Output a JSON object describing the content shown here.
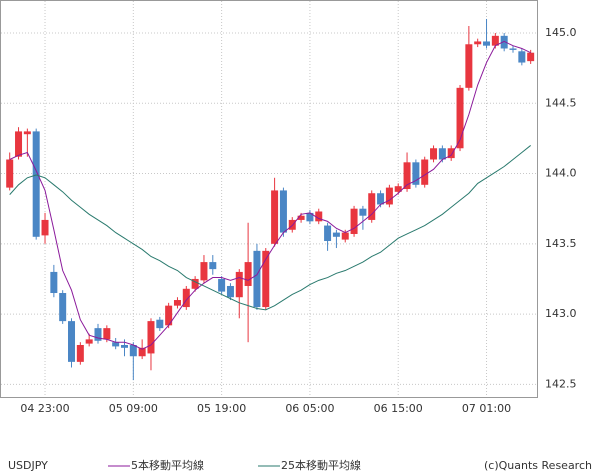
{
  "chart_data": {
    "type": "candlestick",
    "categories": [
      null,
      null,
      null,
      null,
      "04 23:00",
      null,
      null,
      null,
      null,
      null,
      null,
      null,
      null,
      null,
      "05 09:00",
      null,
      null,
      null,
      null,
      null,
      null,
      null,
      null,
      null,
      "05 19:00",
      null,
      null,
      null,
      null,
      null,
      null,
      null,
      null,
      null,
      "06 05:00",
      null,
      null,
      null,
      null,
      null,
      null,
      null,
      null,
      null,
      "06 15:00",
      null,
      null,
      null,
      null,
      null,
      null,
      null,
      null,
      null,
      "07 01:00",
      null,
      null,
      null,
      null,
      null
    ],
    "open": [
      143.9,
      144.12,
      144.28,
      144.3,
      143.56,
      143.3,
      143.15,
      142.95,
      142.66,
      142.79,
      142.9,
      142.82,
      142.8,
      142.78,
      142.78,
      142.7,
      142.72,
      142.96,
      142.92,
      143.06,
      143.05,
      143.18,
      143.24,
      143.37,
      143.25,
      143.2,
      143.12,
      143.2,
      143.45,
      143.05,
      143.5,
      143.88,
      143.6,
      143.67,
      143.72,
      143.66,
      143.63,
      143.58,
      143.53,
      143.57,
      143.75,
      143.67,
      143.86,
      143.78,
      143.87,
      143.89,
      144.08,
      143.92,
      144.1,
      144.18,
      144.11,
      144.18,
      144.61,
      144.92,
      144.94,
      144.91,
      144.98,
      144.89,
      144.87,
      144.8
    ],
    "high": [
      144.15,
      144.33,
      144.32,
      144.32,
      143.72,
      143.35,
      143.17,
      142.97,
      142.8,
      142.86,
      142.93,
      142.92,
      142.83,
      142.82,
      142.8,
      142.82,
      142.97,
      142.98,
      143.08,
      143.12,
      143.2,
      143.27,
      143.42,
      143.42,
      143.27,
      143.22,
      143.32,
      143.65,
      143.5,
      143.47,
      143.97,
      143.9,
      143.69,
      143.72,
      143.74,
      143.75,
      143.65,
      143.6,
      143.6,
      143.77,
      143.77,
      143.88,
      143.88,
      143.92,
      143.93,
      144.15,
      144.1,
      144.12,
      144.2,
      144.2,
      144.2,
      144.63,
      145.05,
      144.96,
      145.1,
      145.0,
      145.0,
      144.91,
      144.89,
      144.88
    ],
    "low": [
      143.88,
      144.1,
      144.12,
      143.53,
      143.5,
      143.12,
      142.93,
      142.62,
      142.64,
      142.77,
      142.79,
      142.8,
      142.75,
      142.7,
      142.53,
      142.68,
      142.6,
      142.88,
      142.9,
      143.04,
      143.03,
      143.16,
      143.22,
      143.28,
      143.14,
      143.1,
      142.97,
      142.8,
      143.03,
      143.03,
      143.48,
      143.55,
      143.58,
      143.65,
      143.64,
      143.64,
      143.45,
      143.47,
      143.51,
      143.55,
      143.6,
      143.65,
      143.76,
      143.76,
      143.85,
      143.87,
      143.9,
      143.9,
      144.08,
      144.08,
      144.09,
      144.16,
      144.59,
      144.9,
      144.89,
      144.89,
      144.87,
      144.86,
      144.77,
      144.78
    ],
    "close": [
      144.1,
      144.3,
      144.3,
      143.55,
      143.67,
      143.15,
      142.95,
      142.66,
      142.78,
      142.82,
      142.81,
      142.9,
      142.77,
      142.76,
      142.7,
      142.76,
      142.95,
      142.9,
      143.06,
      143.1,
      143.18,
      143.25,
      143.37,
      143.32,
      143.16,
      143.12,
      143.3,
      143.37,
      143.05,
      143.45,
      143.88,
      143.58,
      143.67,
      143.7,
      143.66,
      143.73,
      143.52,
      143.55,
      143.58,
      143.75,
      143.7,
      143.86,
      143.78,
      143.9,
      143.91,
      144.08,
      143.92,
      144.1,
      144.18,
      144.1,
      144.18,
      144.61,
      144.92,
      144.94,
      144.91,
      144.98,
      144.89,
      144.88,
      144.79,
      144.86
    ],
    "up_color": "#e8363f",
    "down_color": "#4a86c5",
    "series": [
      {
        "name": "5本移動平均線",
        "color": "#8b1a9b",
        "values": [
          144.1,
          144.13,
          144.15,
          144.02,
          143.88,
          143.6,
          143.31,
          143.17,
          142.96,
          142.85,
          142.83,
          142.82,
          142.8,
          142.8,
          142.78,
          142.75,
          142.78,
          142.85,
          142.92,
          143.01,
          143.1,
          143.17,
          143.22,
          143.26,
          143.26,
          143.24,
          143.26,
          143.24,
          143.28,
          143.39,
          143.49,
          143.58,
          143.63,
          143.71,
          143.72,
          143.68,
          143.66,
          143.61,
          143.58,
          143.61,
          143.66,
          143.71,
          143.78,
          143.81,
          143.86,
          143.92,
          143.95,
          143.99,
          144.03,
          144.1,
          144.13,
          144.24,
          144.42,
          144.63,
          144.79,
          144.91,
          144.94,
          144.91,
          144.89,
          144.86
        ]
      },
      {
        "name": "25本移動平均線",
        "color": "#2a7a6e",
        "values": [
          143.85,
          143.92,
          143.97,
          143.99,
          143.97,
          143.92,
          143.87,
          143.81,
          143.76,
          143.71,
          143.67,
          143.63,
          143.58,
          143.54,
          143.5,
          143.46,
          143.41,
          143.38,
          143.34,
          143.31,
          143.26,
          143.23,
          143.2,
          143.17,
          143.14,
          143.11,
          143.08,
          143.06,
          143.04,
          143.03,
          143.06,
          143.1,
          143.14,
          143.17,
          143.21,
          143.24,
          143.26,
          143.29,
          143.31,
          143.34,
          143.37,
          143.41,
          143.44,
          143.49,
          143.54,
          143.57,
          143.6,
          143.63,
          143.67,
          143.71,
          143.76,
          143.81,
          143.86,
          143.93,
          143.97,
          144.01,
          144.05,
          144.1,
          144.15,
          144.2
        ]
      }
    ],
    "ylim": [
      142.41,
      145.235
    ],
    "yticks": [
      142.5,
      {
        "value": 143,
        "label": "143.0"
      },
      143.5,
      {
        "value": 144,
        "label": "144.0"
      },
      144.5,
      {
        "value": 145,
        "label": "145.0"
      }
    ],
    "grid": true,
    "symbol": "USDJPY",
    "credit": "(c)Quants Research"
  }
}
